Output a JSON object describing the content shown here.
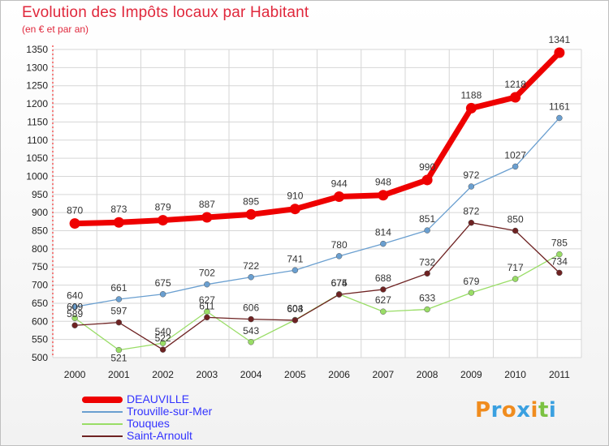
{
  "title": "Evolution des Impôts locaux par Habitant",
  "subtitle": "(en € et par an)",
  "logo": {
    "text": "Proxiti",
    "letters": [
      {
        "ch": "P",
        "color": "#f08c1e"
      },
      {
        "ch": "r",
        "color": "#3aa0e0"
      },
      {
        "ch": "o",
        "color": "#f08c1e"
      },
      {
        "ch": "x",
        "color": "#3aa0e0"
      },
      {
        "ch": "i",
        "color": "#f08c1e"
      },
      {
        "ch": "t",
        "color": "#7cc242"
      },
      {
        "ch": "i",
        "color": "#3aa0e0"
      }
    ]
  },
  "chart_data": {
    "type": "line",
    "x": [
      "2000",
      "2001",
      "2002",
      "2003",
      "2004",
      "2005",
      "2006",
      "2007",
      "2008",
      "2009",
      "2010",
      "2011"
    ],
    "ylim": [
      500,
      1350
    ],
    "yticks": [
      500,
      550,
      600,
      650,
      700,
      750,
      800,
      850,
      900,
      950,
      1000,
      1050,
      1100,
      1150,
      1200,
      1250,
      1300,
      1350
    ],
    "grid": true,
    "legend_position": "bottom-left",
    "series": [
      {
        "name": "DEAUVILLE",
        "color": "#ee0000",
        "values": [
          870,
          873,
          879,
          887,
          895,
          910,
          944,
          948,
          990,
          1188,
          1218,
          1341
        ]
      },
      {
        "name": "Trouville-sur-Mer",
        "color": "#6a9fd0",
        "values": [
          640,
          661,
          675,
          702,
          722,
          741,
          780,
          814,
          851,
          972,
          1027,
          1161
        ]
      },
      {
        "name": "Touques",
        "color": "#99dd66",
        "values": [
          609,
          521,
          540,
          627,
          543,
          604,
          675,
          627,
          633,
          679,
          717,
          785
        ]
      },
      {
        "name": "Saint-Arnoult",
        "color": "#6e2222",
        "values": [
          589,
          597,
          522,
          611,
          606,
          603,
          674,
          688,
          732,
          872,
          850,
          734
        ]
      }
    ]
  }
}
